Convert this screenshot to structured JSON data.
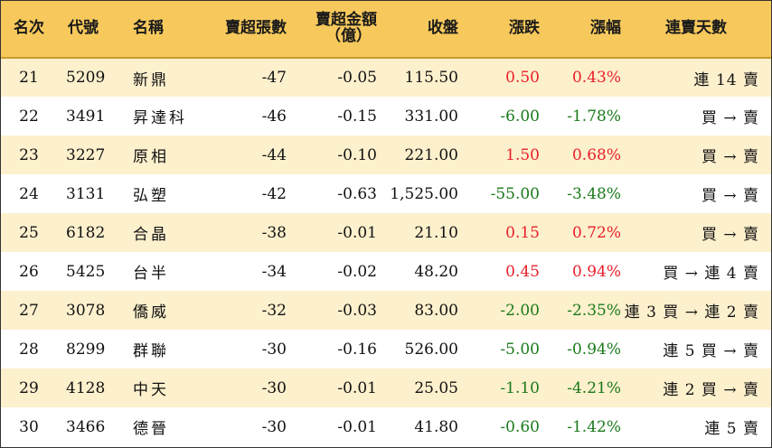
{
  "table": {
    "headers": {
      "rank": "名次",
      "code": "代號",
      "name": "名稱",
      "sell_lots": "賣超張數",
      "sell_amount_line1": "賣超金額",
      "sell_amount_line2": "（億）",
      "close": "收盤",
      "change": "漲跌",
      "change_pct": "漲幅",
      "streak": "連賣天數"
    },
    "rows": [
      {
        "rank": "21",
        "code": "5209",
        "name": "新鼎",
        "sell_lots": "-47",
        "sell_amount": "-0.05",
        "close": "115.50",
        "change": "0.50",
        "change_pct": "0.43%",
        "streak": "連 14 賣"
      },
      {
        "rank": "22",
        "code": "3491",
        "name": "昇達科",
        "sell_lots": "-46",
        "sell_amount": "-0.15",
        "close": "331.00",
        "change": "-6.00",
        "change_pct": "-1.78%",
        "streak": "買 → 賣"
      },
      {
        "rank": "23",
        "code": "3227",
        "name": "原相",
        "sell_lots": "-44",
        "sell_amount": "-0.10",
        "close": "221.00",
        "change": "1.50",
        "change_pct": "0.68%",
        "streak": "買 → 賣"
      },
      {
        "rank": "24",
        "code": "3131",
        "name": "弘塑",
        "sell_lots": "-42",
        "sell_amount": "-0.63",
        "close": "1,525.00",
        "change": "-55.00",
        "change_pct": "-3.48%",
        "streak": "買 → 賣"
      },
      {
        "rank": "25",
        "code": "6182",
        "name": "合晶",
        "sell_lots": "-38",
        "sell_amount": "-0.01",
        "close": "21.10",
        "change": "0.15",
        "change_pct": "0.72%",
        "streak": "買 → 賣"
      },
      {
        "rank": "26",
        "code": "5425",
        "name": "台半",
        "sell_lots": "-34",
        "sell_amount": "-0.02",
        "close": "48.20",
        "change": "0.45",
        "change_pct": "0.94%",
        "streak": "買 → 連 4 賣"
      },
      {
        "rank": "27",
        "code": "3078",
        "name": "僑威",
        "sell_lots": "-32",
        "sell_amount": "-0.03",
        "close": "83.00",
        "change": "-2.00",
        "change_pct": "-2.35%",
        "streak": "連 3 買 → 連 2 賣"
      },
      {
        "rank": "28",
        "code": "8299",
        "name": "群聯",
        "sell_lots": "-30",
        "sell_amount": "-0.16",
        "close": "526.00",
        "change": "-5.00",
        "change_pct": "-0.94%",
        "streak": "連 5 買 → 賣"
      },
      {
        "rank": "29",
        "code": "4128",
        "name": "中天",
        "sell_lots": "-30",
        "sell_amount": "-0.01",
        "close": "25.05",
        "change": "-1.10",
        "change_pct": "-4.21%",
        "streak": "連 2 買 → 賣"
      },
      {
        "rank": "30",
        "code": "3466",
        "name": "德晉",
        "sell_lots": "-30",
        "sell_amount": "-0.01",
        "close": "41.80",
        "change": "-0.60",
        "change_pct": "-1.42%",
        "streak": "連 5 賣"
      }
    ]
  },
  "colors": {
    "header_bg": "#f7c95c",
    "odd_row_bg": "#fdf0cd",
    "even_row_bg": "#ffffff",
    "up": "#e8202a",
    "down": "#1a7a1a"
  }
}
